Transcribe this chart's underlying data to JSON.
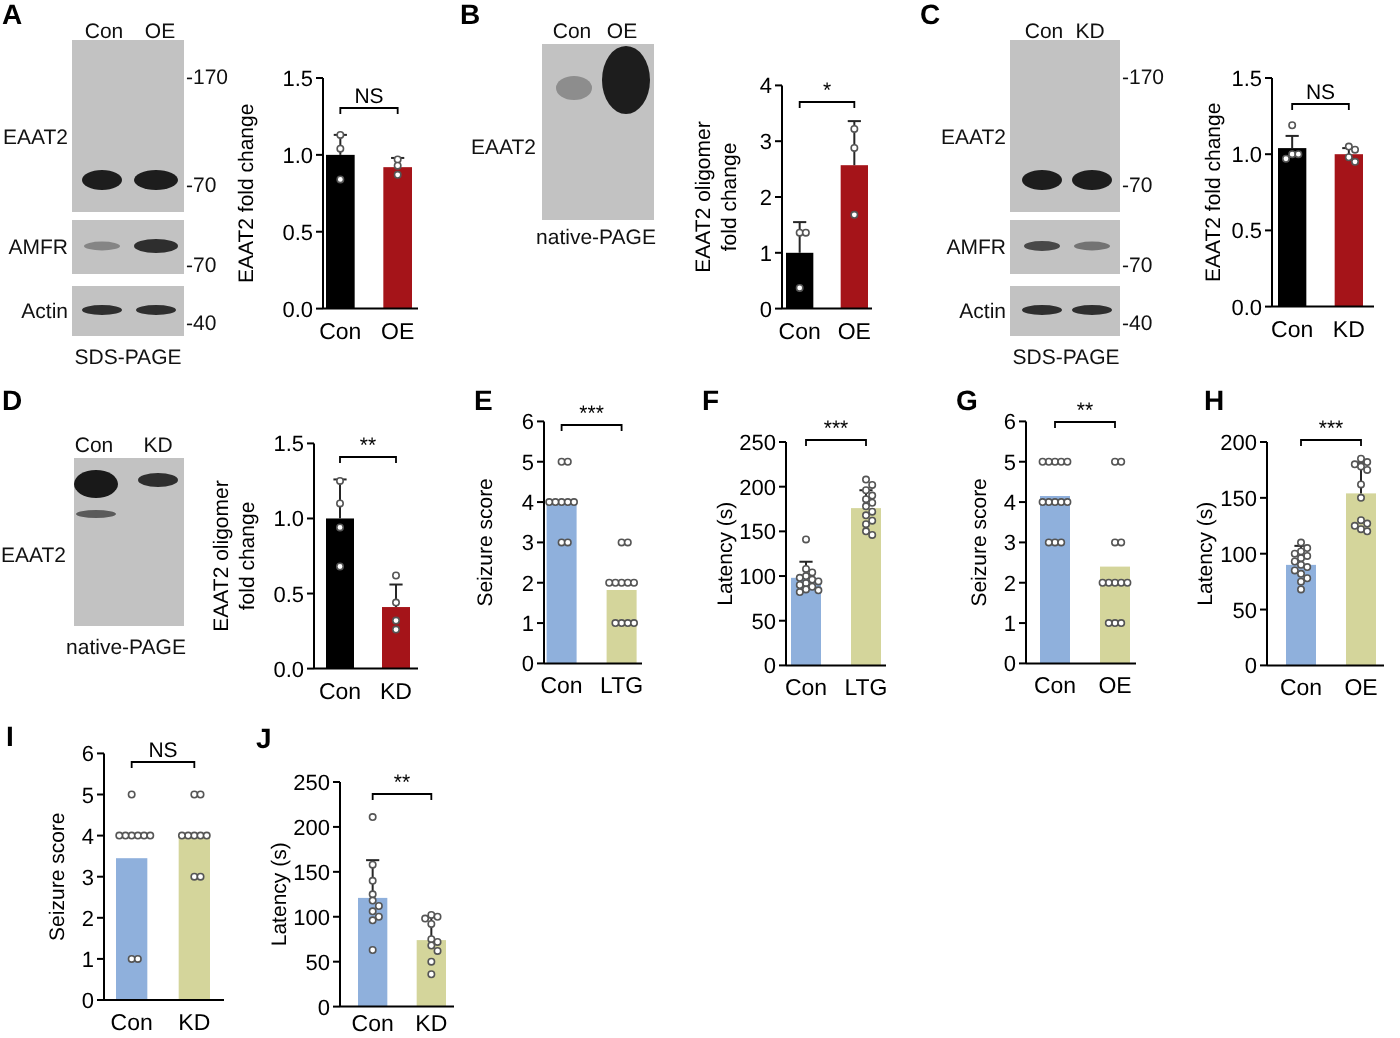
{
  "chart_data": [
    {
      "type": "bar",
      "categories": [
        "Con",
        "OE"
      ],
      "ylabel": "EAAT2 fold change",
      "ylim": [
        0,
        1.5
      ],
      "yticks": [
        {
          "value": 0,
          "label": "0.0"
        },
        {
          "value": 0.5,
          "label": "0.5"
        },
        {
          "value": 1,
          "label": "1.0"
        },
        {
          "value": 1.5,
          "label": "1.5"
        }
      ],
      "marker": "circle",
      "series": [
        {
          "type": "bar",
          "colors": [
            "#000000",
            "#a51419"
          ],
          "values": [
            1.0,
            0.92
          ],
          "errors": [
            [
              1.0,
              1.13
            ],
            [
              0.92,
              0.98
            ]
          ]
        },
        {
          "type": "scatter",
          "color": "#555555",
          "x": [
            "Con",
            "Con",
            "Con",
            "OE",
            "OE",
            "OE"
          ],
          "values": [
            1.13,
            1.04,
            0.84,
            0.97,
            0.93,
            0.87
          ]
        }
      ],
      "annotations": [
        "A",
        "NS",
        "Con",
        "OE",
        "EAAT2",
        "AMFR",
        "Actin",
        "-170",
        "-70",
        "-70",
        "-40",
        "SDS-PAGE"
      ]
    },
    {
      "type": "bar",
      "categories": [
        "Con",
        "OE"
      ],
      "ylabel": "EAAT2 oligomer fold change",
      "ylim": [
        0,
        4
      ],
      "yticks": [
        0,
        1,
        2,
        3,
        4
      ],
      "marker": "circle",
      "series": [
        {
          "type": "bar",
          "colors": [
            "#000000",
            "#a51419"
          ],
          "values": [
            1.0,
            2.57
          ],
          "errors": [
            [
              1.0,
              1.55
            ],
            [
              2.57,
              3.36
            ]
          ]
        },
        {
          "type": "scatter",
          "color": "#555555",
          "x": [
            "Con",
            "Con",
            "Con",
            "OE",
            "OE",
            "OE"
          ],
          "values": [
            1.36,
            1.36,
            0.37,
            3.22,
            2.88,
            1.68
          ]
        }
      ],
      "annotations": [
        "B",
        "*",
        "Con",
        "OE",
        "EAAT2",
        "native-PAGE"
      ]
    },
    {
      "type": "bar",
      "categories": [
        "Con",
        "KD"
      ],
      "ylabel": "EAAT2 fold change",
      "ylim": [
        0,
        1.5
      ],
      "yticks": [
        {
          "value": 0,
          "label": "0.0"
        },
        {
          "value": 0.5,
          "label": "0.5"
        },
        {
          "value": 1,
          "label": "1.0"
        },
        {
          "value": 1.5,
          "label": "1.5"
        }
      ],
      "marker": "circle",
      "series": [
        {
          "type": "bar",
          "colors": [
            "#000000",
            "#a51419"
          ],
          "values": [
            1.04,
            1.0
          ],
          "errors": [
            [
              1.04,
              1.12
            ],
            [
              1.0,
              1.04
            ]
          ]
        },
        {
          "type": "scatter",
          "color": "#555555",
          "x": [
            "Con",
            "Con",
            "Con",
            "Con",
            "KD",
            "KD",
            "KD",
            "KD"
          ],
          "values": [
            1.19,
            1.0,
            1.0,
            0.97,
            1.05,
            1.03,
            0.98,
            0.95
          ]
        }
      ],
      "annotations": [
        "C",
        "NS",
        "Con",
        "KD",
        "EAAT2",
        "AMFR",
        "Actin",
        "-170",
        "-70",
        "-70",
        "-40",
        "SDS-PAGE"
      ]
    },
    {
      "type": "bar",
      "categories": [
        "Con",
        "KD"
      ],
      "ylabel": "EAAT2 oligomer fold change",
      "ylim": [
        0,
        1.5
      ],
      "yticks": [
        {
          "value": 0,
          "label": "0.0"
        },
        {
          "value": 0.5,
          "label": "0.5"
        },
        {
          "value": 1,
          "label": "1.0"
        },
        {
          "value": 1.5,
          "label": "1.5"
        }
      ],
      "marker": "circle",
      "series": [
        {
          "type": "bar",
          "colors": [
            "#000000",
            "#a51419"
          ],
          "values": [
            1.0,
            0.41
          ],
          "errors": [
            [
              1.0,
              1.26
            ],
            [
              0.41,
              0.56
            ]
          ]
        },
        {
          "type": "scatter",
          "color": "#555555",
          "x": [
            "Con",
            "Con",
            "Con",
            "Con",
            "KD",
            "KD",
            "KD",
            "KD"
          ],
          "values": [
            1.25,
            1.1,
            0.94,
            0.68,
            0.62,
            0.44,
            0.32,
            0.26
          ]
        }
      ],
      "annotations": [
        "D",
        "**",
        "Con",
        "KD",
        "EAAT2",
        "native-PAGE"
      ]
    },
    {
      "type": "bar",
      "categories": [
        "Con",
        "LTG"
      ],
      "ylabel": "Seizure score",
      "ylim": [
        0,
        6
      ],
      "yticks": [
        0,
        1,
        2,
        3,
        4,
        5,
        6
      ],
      "marker": "circle",
      "series": [
        {
          "type": "bar",
          "colors": [
            "#8fb0dc",
            "#d4d59b"
          ],
          "values": [
            4.0,
            1.82
          ]
        },
        {
          "type": "scatter",
          "color": "#555555",
          "x": [
            "Con",
            "Con",
            "Con",
            "Con",
            "Con",
            "Con",
            "Con",
            "Con",
            "Con",
            "LTG",
            "LTG",
            "LTG",
            "LTG",
            "LTG",
            "LTG",
            "LTG",
            "LTG",
            "LTG",
            "LTG",
            "LTG"
          ],
          "values": [
            5,
            5,
            4,
            4,
            4,
            4,
            4,
            3,
            3,
            3,
            3,
            2,
            2,
            2,
            2,
            2,
            1,
            1,
            1,
            1
          ]
        }
      ],
      "annotations": [
        "E",
        "***"
      ]
    },
    {
      "type": "bar",
      "categories": [
        "Con",
        "LTG"
      ],
      "ylabel": "Latency (s)",
      "ylim": [
        0,
        250
      ],
      "yticks": [
        0,
        50,
        100,
        150,
        200,
        250
      ],
      "marker": "circle",
      "series": [
        {
          "type": "bar",
          "colors": [
            "#8fb0dc",
            "#d4d59b"
          ],
          "values": [
            98,
            176
          ],
          "errors": [
            [
              98,
              116
            ],
            [
              176,
              196
            ]
          ]
        },
        {
          "type": "scatter",
          "color": "#555555",
          "x": [
            "Con",
            "Con",
            "Con",
            "Con",
            "Con",
            "Con",
            "Con",
            "Con",
            "Con",
            "Con",
            "Con",
            "Con",
            "Con",
            "LTG",
            "LTG",
            "LTG",
            "LTG",
            "LTG",
            "LTG",
            "LTG",
            "LTG",
            "LTG",
            "LTG",
            "LTG",
            "LTG",
            "LTG"
          ],
          "values": [
            141,
            108,
            104,
            100,
            98,
            96,
            94,
            92,
            90,
            88,
            85,
            84,
            82,
            208,
            202,
            196,
            190,
            186,
            182,
            178,
            172,
            168,
            162,
            158,
            150,
            146
          ]
        }
      ],
      "annotations": [
        "F",
        "***"
      ]
    },
    {
      "type": "bar",
      "categories": [
        "Con",
        "OE"
      ],
      "ylabel": "Seizure score",
      "ylim": [
        0,
        6
      ],
      "yticks": [
        0,
        1,
        2,
        3,
        4,
        5,
        6
      ],
      "marker": "circle",
      "series": [
        {
          "type": "bar",
          "colors": [
            "#8fb0dc",
            "#d4d59b"
          ],
          "values": [
            4.15,
            2.4
          ]
        },
        {
          "type": "scatter",
          "color": "#555555",
          "x": [
            "Con",
            "Con",
            "Con",
            "Con",
            "Con",
            "Con",
            "Con",
            "Con",
            "Con",
            "Con",
            "Con",
            "Con",
            "Con",
            "OE",
            "OE",
            "OE",
            "OE",
            "OE",
            "OE",
            "OE",
            "OE",
            "OE",
            "OE",
            "OE",
            "OE"
          ],
          "values": [
            5,
            5,
            5,
            5,
            5,
            4,
            4,
            4,
            4,
            4,
            3,
            3,
            3,
            5,
            5,
            3,
            3,
            2,
            2,
            2,
            2,
            2,
            1,
            1,
            1
          ]
        }
      ],
      "annotations": [
        "G",
        "**"
      ]
    },
    {
      "type": "bar",
      "categories": [
        "Con",
        "OE"
      ],
      "ylabel": "Latency (s)",
      "ylim": [
        0,
        200
      ],
      "yticks": [
        0,
        50,
        100,
        150,
        200
      ],
      "marker": "circle",
      "series": [
        {
          "type": "bar",
          "colors": [
            "#8fb0dc",
            "#d4d59b"
          ],
          "values": [
            90,
            154
          ],
          "errors": [
            [
              90,
              107
            ],
            [
              154,
              181
            ]
          ]
        },
        {
          "type": "scatter",
          "color": "#555555",
          "x": [
            "Con",
            "Con",
            "Con",
            "Con",
            "Con",
            "Con",
            "Con",
            "Con",
            "Con",
            "Con",
            "Con",
            "Con",
            "Con",
            "Con",
            "OE",
            "OE",
            "OE",
            "OE",
            "OE",
            "OE",
            "OE",
            "OE",
            "OE",
            "OE",
            "OE",
            "OE"
          ],
          "values": [
            110,
            105,
            102,
            100,
            98,
            96,
            93,
            90,
            88,
            85,
            82,
            78,
            75,
            68,
            185,
            182,
            180,
            178,
            175,
            162,
            150,
            130,
            127,
            125,
            122,
            120
          ]
        }
      ],
      "annotations": [
        "H",
        "***"
      ]
    },
    {
      "type": "bar",
      "categories": [
        "Con",
        "KD"
      ],
      "ylabel": "Seizure score",
      "ylim": [
        0,
        6
      ],
      "yticks": [
        0,
        1,
        2,
        3,
        4,
        5,
        6
      ],
      "marker": "circle",
      "series": [
        {
          "type": "bar",
          "colors": [
            "#8fb0dc",
            "#d4d59b"
          ],
          "values": [
            3.45,
            4.0
          ]
        },
        {
          "type": "scatter",
          "color": "#555555",
          "x": [
            "Con",
            "Con",
            "Con",
            "Con",
            "Con",
            "Con",
            "Con",
            "Con",
            "Con",
            "KD",
            "KD",
            "KD",
            "KD",
            "KD",
            "KD",
            "KD",
            "KD",
            "KD"
          ],
          "values": [
            5,
            4,
            4,
            4,
            4,
            4,
            4,
            1,
            1,
            5,
            5,
            4,
            4,
            4,
            4,
            4,
            3,
            3
          ]
        }
      ],
      "annotations": [
        "I",
        "NS"
      ]
    },
    {
      "type": "bar",
      "categories": [
        "Con",
        "KD"
      ],
      "ylabel": "Latency (s)",
      "ylim": [
        0,
        250
      ],
      "yticks": [
        0,
        50,
        100,
        150,
        200,
        250
      ],
      "marker": "circle",
      "series": [
        {
          "type": "bar",
          "colors": [
            "#8fb0dc",
            "#d4d59b"
          ],
          "values": [
            121,
            74
          ],
          "errors": [
            [
              121,
              163
            ],
            [
              74,
              100
            ]
          ]
        },
        {
          "type": "scatter",
          "color": "#555555",
          "x": [
            "Con",
            "Con",
            "Con",
            "Con",
            "Con",
            "Con",
            "Con",
            "Con",
            "Con",
            "Con",
            "KD",
            "KD",
            "KD",
            "KD",
            "KD",
            "KD",
            "KD",
            "KD",
            "KD",
            "KD"
          ],
          "values": [
            211,
            158,
            140,
            125,
            118,
            112,
            106,
            100,
            96,
            63,
            102,
            100,
            98,
            92,
            75,
            72,
            68,
            62,
            50,
            36
          ]
        }
      ],
      "annotations": [
        "J",
        "**"
      ]
    }
  ]
}
